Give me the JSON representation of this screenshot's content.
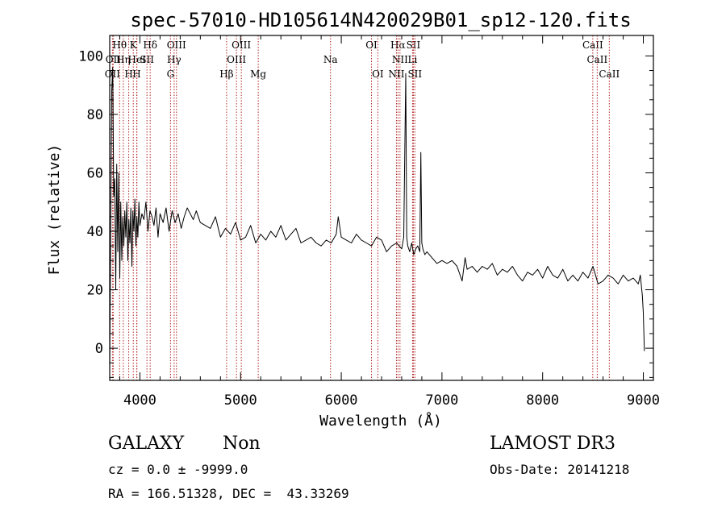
{
  "chart_data": {
    "type": "line",
    "title": "spec-57010-HD105614N420029B01_sp12-120.fits",
    "xlabel": "Wavelength (Å)",
    "ylabel": "Flux (relative)",
    "xlim": [
      3700,
      9100
    ],
    "ylim": [
      -11,
      107
    ],
    "x_ticks": [
      4000,
      5000,
      6000,
      7000,
      8000,
      9000
    ],
    "y_ticks": [
      0,
      20,
      40,
      60,
      80,
      100
    ],
    "grid": false,
    "series": [
      {
        "x": [
          3700,
          3710,
          3720,
          3730,
          3740,
          3750,
          3760,
          3770,
          3780,
          3790,
          3800,
          3810,
          3820,
          3830,
          3840,
          3850,
          3860,
          3870,
          3880,
          3890,
          3900,
          3910,
          3920,
          3930,
          3940,
          3950,
          3960,
          3970,
          3980,
          3990,
          4000,
          4020,
          4040,
          4060,
          4080,
          4100,
          4120,
          4140,
          4160,
          4180,
          4200,
          4230,
          4260,
          4290,
          4320,
          4350,
          4380,
          4410,
          4440,
          4470,
          4500,
          4530,
          4560,
          4600,
          4650,
          4700,
          4750,
          4800,
          4850,
          4900,
          4950,
          5000,
          5050,
          5100,
          5150,
          5200,
          5250,
          5300,
          5350,
          5400,
          5450,
          5500,
          5550,
          5600,
          5650,
          5700,
          5750,
          5800,
          5850,
          5900,
          5950,
          5970,
          6000,
          6050,
          6100,
          6150,
          6200,
          6250,
          6300,
          6350,
          6400,
          6450,
          6500,
          6550,
          6600,
          6620,
          6640,
          6650,
          6660,
          6680,
          6700,
          6720,
          6740,
          6760,
          6780,
          6790,
          6800,
          6810,
          6830,
          6850,
          6900,
          6950,
          7000,
          7050,
          7100,
          7150,
          7200,
          7230,
          7250,
          7300,
          7350,
          7400,
          7450,
          7500,
          7550,
          7600,
          7650,
          7700,
          7750,
          7800,
          7850,
          7900,
          7950,
          8000,
          8050,
          8100,
          8150,
          8200,
          8250,
          8300,
          8350,
          8400,
          8450,
          8500,
          8550,
          8600,
          8650,
          8700,
          8750,
          8800,
          8850,
          8900,
          8950,
          8970,
          8990,
          9000,
          9010
        ],
        "y": [
          -8,
          40,
          88,
          96,
          52,
          58,
          20,
          63,
          33,
          60,
          24,
          50,
          30,
          45,
          35,
          47,
          38,
          50,
          30,
          44,
          36,
          48,
          28,
          47,
          40,
          51,
          35,
          45,
          38,
          50,
          42,
          46,
          44,
          50,
          40,
          47,
          45,
          42,
          48,
          38,
          46,
          43,
          48,
          40,
          47,
          43,
          46,
          41,
          45,
          48,
          46,
          44,
          47,
          43,
          42,
          41,
          45,
          38,
          41,
          39,
          43,
          37,
          38,
          42,
          36,
          39,
          37,
          40,
          38,
          42,
          37,
          39,
          41,
          36,
          37,
          38,
          36,
          35,
          37,
          36,
          39,
          45,
          38,
          37,
          36,
          39,
          37,
          36,
          35,
          38,
          37,
          33,
          35,
          36,
          34,
          38,
          94,
          38,
          35,
          33,
          36,
          32,
          34,
          35,
          33,
          67,
          36,
          34,
          32,
          33,
          31,
          29,
          30,
          29,
          30,
          28,
          23,
          31,
          27,
          28,
          26,
          28,
          27,
          29,
          25,
          27,
          26,
          28,
          25,
          23,
          26,
          25,
          27,
          24,
          28,
          25,
          24,
          27,
          23,
          25,
          23,
          26,
          24,
          28,
          22,
          23,
          25,
          24,
          22,
          25,
          23,
          24,
          22,
          25,
          18,
          12,
          -1
        ]
      }
    ],
    "line_markers": [
      {
        "label": "OII",
        "x": 3727,
        "row": 2
      },
      {
        "label": "OII",
        "x": 3735,
        "row": 1
      },
      {
        "label": "Hθ",
        "x": 3798,
        "row": 0
      },
      {
        "label": "Hη",
        "x": 3835,
        "row": 1
      },
      {
        "label": "H",
        "x": 3889,
        "row": 2
      },
      {
        "label": "K",
        "x": 3934,
        "row": 0
      },
      {
        "label": "HeI",
        "x": 3970,
        "row": 1
      },
      {
        "label": "H",
        "x": 3968,
        "row": 2
      },
      {
        "label": "SII",
        "x": 4070,
        "row": 1
      },
      {
        "label": "Hδ",
        "x": 4102,
        "row": 0
      },
      {
        "label": "OIII",
        "x": 4363,
        "row": 0
      },
      {
        "label": "Hγ",
        "x": 4340,
        "row": 1
      },
      {
        "label": "G",
        "x": 4304,
        "row": 2
      },
      {
        "label": "Hβ",
        "x": 4861,
        "row": 2
      },
      {
        "label": "OIII",
        "x": 5007,
        "row": 0
      },
      {
        "label": "OIII",
        "x": 4959,
        "row": 1
      },
      {
        "label": "Mg",
        "x": 5175,
        "row": 2
      },
      {
        "label": "Na",
        "x": 5893,
        "row": 1
      },
      {
        "label": "OI",
        "x": 6300,
        "row": 0
      },
      {
        "label": "OI",
        "x": 6363,
        "row": 2
      },
      {
        "label": "Hα",
        "x": 6563,
        "row": 0
      },
      {
        "label": "SII",
        "x": 6716,
        "row": 0
      },
      {
        "label": "NII",
        "x": 6583,
        "row": 1
      },
      {
        "label": "Li",
        "x": 6708,
        "row": 1
      },
      {
        "label": "NII",
        "x": 6548,
        "row": 2
      },
      {
        "label": "SII",
        "x": 6731,
        "row": 2
      },
      {
        "label": "CaII",
        "x": 8498,
        "row": 0
      },
      {
        "label": "CaII",
        "x": 8542,
        "row": 1
      },
      {
        "label": "CaII",
        "x": 8662,
        "row": 2
      }
    ]
  },
  "info": {
    "class_label": "GALAXY",
    "subclass_label": "Non",
    "survey_label": "LAMOST DR3",
    "cz_line": "cz = 0.0 ± -9999.0",
    "obs_date_line": "Obs-Date: 20141218",
    "radec_line": "RA = 166.51328, DEC =  43.33269"
  }
}
